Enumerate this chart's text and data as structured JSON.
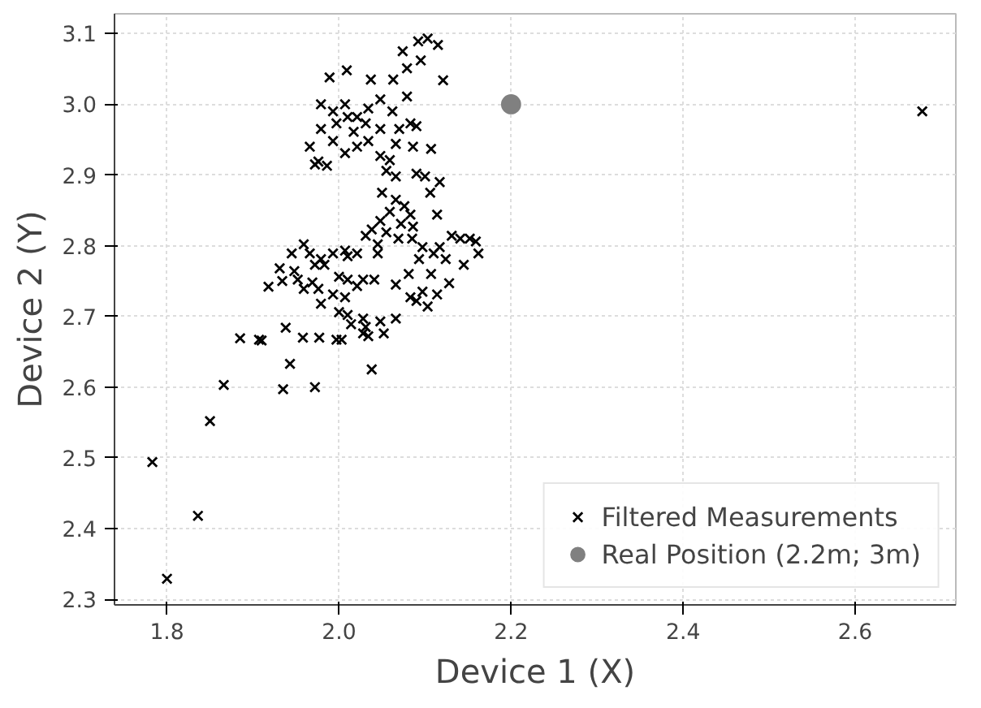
{
  "chart_data": {
    "type": "scatter",
    "xlabel": "Device 1 (X)",
    "ylabel": "Device 2 (Y)",
    "xlim": [
      1.739,
      2.717
    ],
    "ylim": [
      2.292,
      3.128
    ],
    "xticks": [
      {
        "value": 1.8,
        "label": "1.8"
      },
      {
        "value": 2.0,
        "label": "2.0"
      },
      {
        "value": 2.2,
        "label": "2.2"
      },
      {
        "value": 2.4,
        "label": "2.4"
      },
      {
        "value": 2.6,
        "label": "2.6"
      }
    ],
    "yticks": [
      {
        "value": 2.3,
        "label": "2.3"
      },
      {
        "value": 2.4,
        "label": "2.4"
      },
      {
        "value": 2.5,
        "label": "2.5"
      },
      {
        "value": 2.6,
        "label": "2.6"
      },
      {
        "value": 2.7,
        "label": "2.7"
      },
      {
        "value": 2.8,
        "label": "2.8"
      },
      {
        "value": 2.9,
        "label": "2.9"
      },
      {
        "value": 3.0,
        "label": "3.0"
      },
      {
        "value": 3.1,
        "label": "3.1"
      }
    ],
    "grid": true,
    "legend": "bottom right",
    "series": [
      {
        "name": "Filtered Measurements",
        "color": "#000000",
        "marker": "cross",
        "x": [
          1.783,
          1.8,
          1.836,
          1.85,
          1.866,
          1.885,
          1.907,
          1.91,
          1.935,
          1.943,
          1.938,
          1.958,
          1.972,
          1.977,
          1.997,
          2.003,
          2.038,
          2.678,
          1.989,
          2.009,
          2.074,
          2.092,
          2.103,
          2.115,
          2.095,
          2.079,
          2.121,
          2.037,
          2.063,
          1.979,
          1.993,
          2.007,
          2.021,
          2.034,
          2.048,
          2.062,
          2.079,
          2.083,
          2.07,
          2.09,
          2.048,
          2.034,
          2.021,
          2.007,
          1.993,
          1.979,
          1.966,
          1.976,
          1.986,
          1.972,
          2.017,
          2.031,
          2.048,
          2.059,
          2.086,
          2.107,
          2.066,
          2.01,
          1.997,
          2.055,
          2.066,
          2.09,
          2.1,
          2.117,
          2.05,
          2.106,
          2.066,
          2.076,
          2.059,
          2.083,
          2.114,
          2.048,
          2.072,
          2.086,
          2.038,
          2.055,
          2.069,
          2.085,
          2.031,
          2.045,
          2.045,
          2.131,
          2.141,
          2.152,
          2.159,
          2.162,
          2.145,
          2.124,
          2.11,
          2.097,
          2.093,
          2.117,
          2.107,
          2.128,
          2.114,
          2.097,
          2.103,
          2.083,
          2.09,
          2.081,
          2.066,
          1.959,
          1.966,
          1.979,
          1.993,
          2.007,
          2.01,
          2.021,
          1.945,
          1.931,
          1.948,
          1.952,
          1.934,
          1.918,
          1.959,
          1.969,
          1.976,
          1.979,
          1.993,
          2.007,
          2.0,
          2.01,
          2.021,
          2.028,
          2.041,
          2.0,
          2.01,
          2.014,
          2.028,
          2.031,
          2.048,
          2.066,
          2.034,
          2.052,
          2.028,
          1.972,
          1.983
        ],
        "values": [
          2.494,
          2.329,
          2.418,
          2.552,
          2.603,
          2.669,
          2.667,
          2.666,
          2.597,
          2.633,
          2.684,
          2.67,
          2.6,
          2.67,
          2.667,
          2.667,
          2.625,
          2.99,
          3.038,
          3.048,
          3.075,
          3.089,
          3.093,
          3.084,
          3.062,
          3.051,
          3.034,
          3.035,
          3.035,
          3.0,
          2.99,
          3.0,
          2.982,
          2.994,
          3.007,
          2.99,
          3.011,
          2.973,
          2.965,
          2.969,
          2.965,
          2.948,
          2.94,
          2.931,
          2.948,
          2.965,
          2.94,
          2.919,
          2.913,
          2.915,
          2.961,
          2.973,
          2.927,
          2.921,
          2.94,
          2.937,
          2.944,
          2.982,
          2.973,
          2.906,
          2.898,
          2.902,
          2.898,
          2.89,
          2.875,
          2.875,
          2.865,
          2.856,
          2.848,
          2.844,
          2.844,
          2.835,
          2.831,
          2.827,
          2.823,
          2.819,
          2.81,
          2.81,
          2.814,
          2.802,
          2.789,
          2.814,
          2.81,
          2.81,
          2.806,
          2.789,
          2.773,
          2.781,
          2.789,
          2.798,
          2.781,
          2.798,
          2.76,
          2.747,
          2.731,
          2.735,
          2.714,
          2.727,
          2.722,
          2.76,
          2.745,
          2.802,
          2.789,
          2.781,
          2.789,
          2.793,
          2.785,
          2.789,
          2.789,
          2.768,
          2.764,
          2.752,
          2.75,
          2.742,
          2.739,
          2.748,
          2.739,
          2.718,
          2.731,
          2.727,
          2.756,
          2.752,
          2.743,
          2.752,
          2.752,
          2.706,
          2.702,
          2.689,
          2.697,
          2.685,
          2.693,
          2.697,
          2.672,
          2.676,
          2.676,
          2.773,
          2.773
        ]
      },
      {
        "name": "Real Position (2.2m; 3m)",
        "color": "#808080",
        "marker": "circle",
        "x": [
          2.2
        ],
        "values": [
          3.0
        ]
      }
    ]
  }
}
